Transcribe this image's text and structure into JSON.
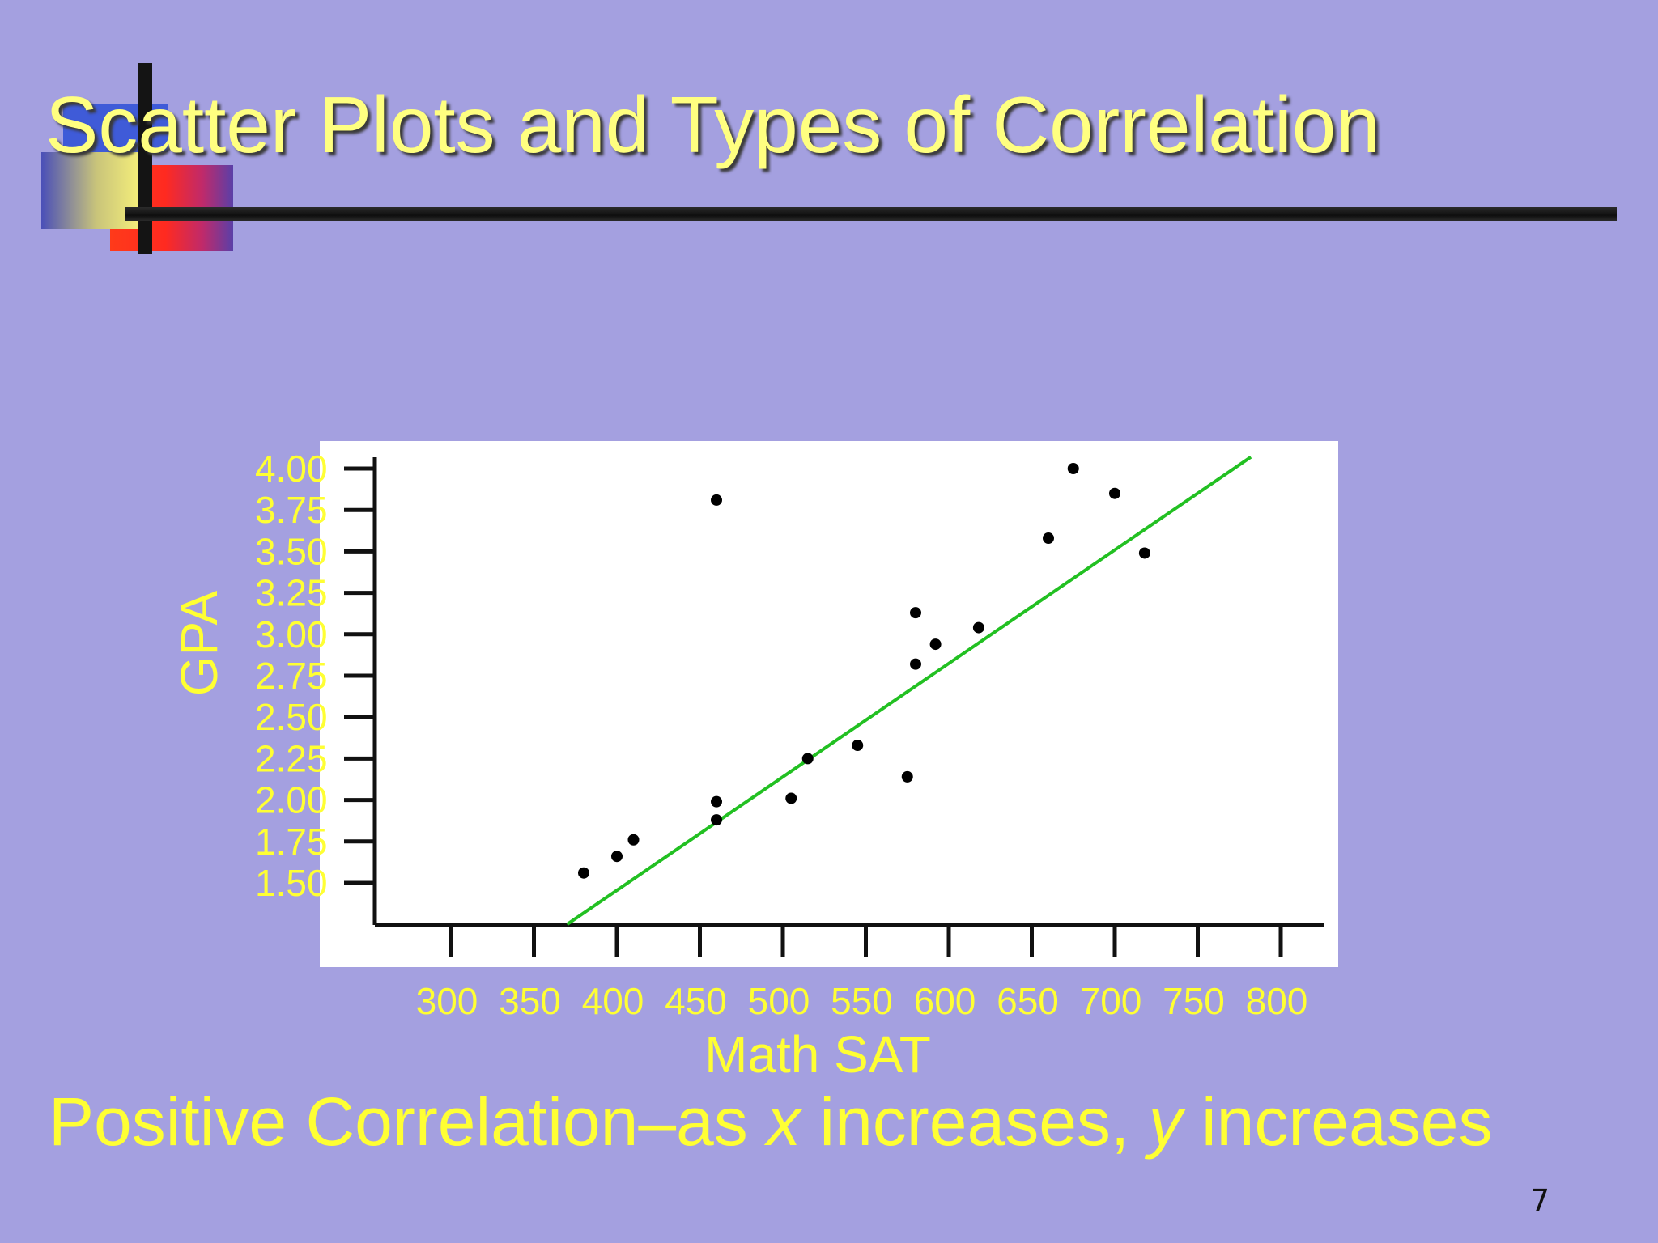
{
  "slide": {
    "title": "Scatter Plots and Types of Correlation",
    "caption_prefix": "Positive Correlation–as ",
    "caption_x": "x",
    "caption_mid": " increases, ",
    "caption_y": "y",
    "caption_suffix": " increases",
    "page_number": "7",
    "colors": {
      "background": "#a4a0e0",
      "title": "#ffff80",
      "axis_text": "#ffff33",
      "trend_line": "#22c022",
      "points": "#000000",
      "plot_area": "#ffffff"
    }
  },
  "chart_data": {
    "type": "scatter",
    "title": "",
    "xlabel": "Math SAT",
    "ylabel": "GPA",
    "x_ticks": [
      "300",
      "350",
      "400",
      "450",
      "500",
      "550",
      "600",
      "650",
      "700",
      "750",
      "800"
    ],
    "y_ticks": [
      "4.00",
      "3.75",
      "3.50",
      "3.25",
      "3.00",
      "2.75",
      "2.50",
      "2.25",
      "2.00",
      "1.75",
      "1.50"
    ],
    "xlim": [
      250,
      820
    ],
    "ylim": [
      1.25,
      4.0
    ],
    "grid": false,
    "points": [
      {
        "x": 380,
        "y": 1.56
      },
      {
        "x": 400,
        "y": 1.66
      },
      {
        "x": 410,
        "y": 1.76
      },
      {
        "x": 460,
        "y": 1.88
      },
      {
        "x": 460,
        "y": 1.99
      },
      {
        "x": 460,
        "y": 3.81
      },
      {
        "x": 505,
        "y": 2.01
      },
      {
        "x": 515,
        "y": 2.25
      },
      {
        "x": 545,
        "y": 2.33
      },
      {
        "x": 575,
        "y": 2.14
      },
      {
        "x": 580,
        "y": 2.82
      },
      {
        "x": 580,
        "y": 3.13
      },
      {
        "x": 592,
        "y": 2.94
      },
      {
        "x": 618,
        "y": 3.04
      },
      {
        "x": 660,
        "y": 3.58
      },
      {
        "x": 675,
        "y": 4.0
      },
      {
        "x": 700,
        "y": 3.85
      },
      {
        "x": 718,
        "y": 3.49
      }
    ],
    "trend_line": {
      "x1": 370,
      "y1": 1.25,
      "x2": 782,
      "y2": 4.07
    }
  }
}
